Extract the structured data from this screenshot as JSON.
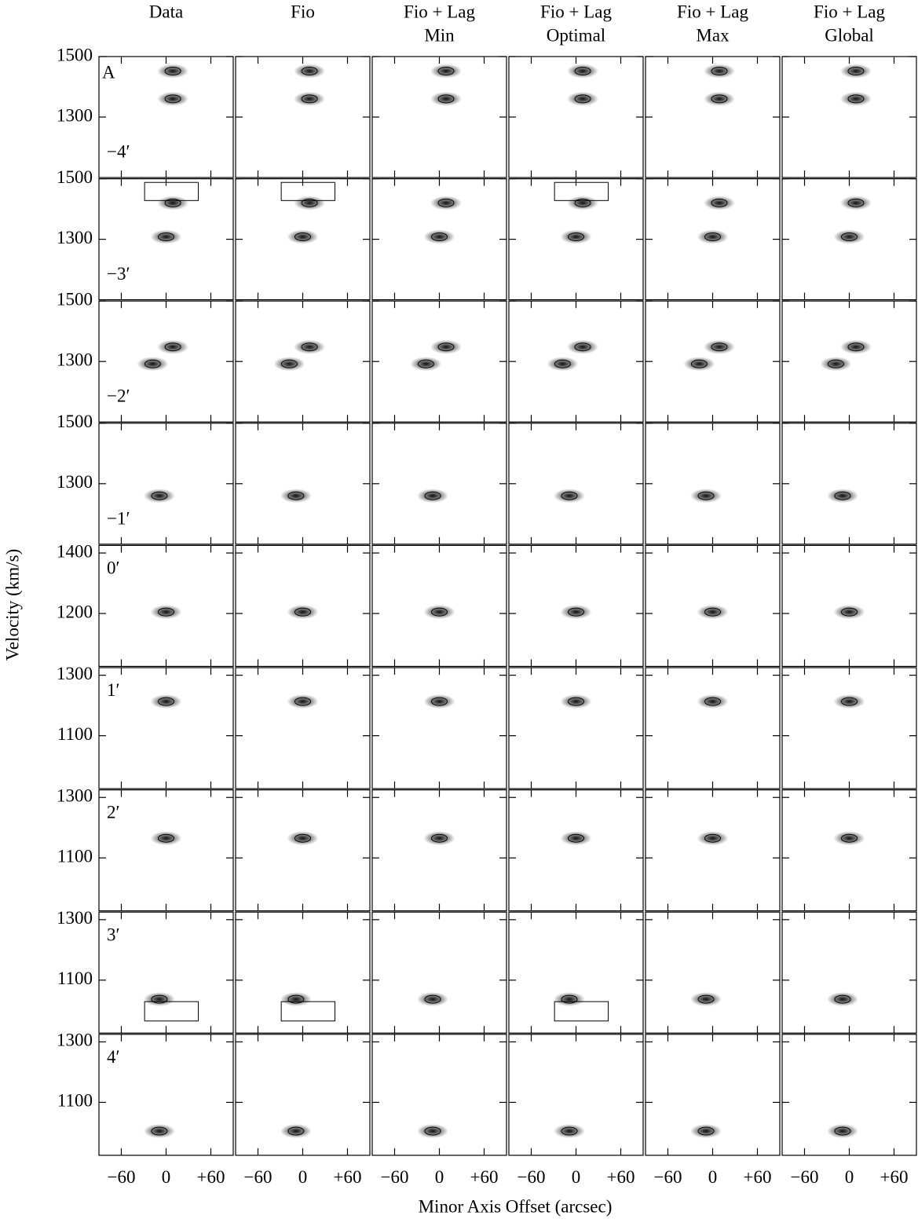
{
  "chart_data": {
    "type": "contour-grid",
    "columns": [
      {
        "title": "Data"
      },
      {
        "title": "Fio"
      },
      {
        "title": "Fio + Lag",
        "subtitle": "Min"
      },
      {
        "title": "Fio + Lag",
        "subtitle": "Optimal"
      },
      {
        "title": "Fio + Lag",
        "subtitle": "Max"
      },
      {
        "title": "Fio + Lag",
        "subtitle": "Global"
      }
    ],
    "rows": [
      {
        "label": "−4′",
        "ylim": [
          1100,
          1500
        ],
        "yticks": [
          1300,
          1500
        ]
      },
      {
        "label": "−3′",
        "ylim": [
          1100,
          1500
        ],
        "yticks": [
          1300,
          1500
        ]
      },
      {
        "label": "−2′",
        "ylim": [
          1100,
          1500
        ],
        "yticks": [
          1300,
          1500
        ]
      },
      {
        "label": "−1′",
        "ylim": [
          1100,
          1500
        ],
        "yticks": [
          1300,
          1500
        ]
      },
      {
        "label": "0′",
        "ylim": [
          1025,
          1425
        ],
        "yticks": [
          1200,
          1400
        ]
      },
      {
        "label": "1′",
        "ylim": [
          925,
          1325
        ],
        "yticks": [
          1100,
          1300
        ]
      },
      {
        "label": "2′",
        "ylim": [
          925,
          1325
        ],
        "yticks": [
          1100,
          1300
        ]
      },
      {
        "label": "3′",
        "ylim": [
          925,
          1325
        ],
        "yticks": [
          1100,
          1300
        ]
      },
      {
        "label": "4′",
        "ylim": [
          925,
          1325
        ],
        "yticks": [
          1100,
          1300
        ]
      }
    ],
    "annotation": "A",
    "xlim": [
      -90,
      90
    ],
    "xticks": [
      {
        "value": -60,
        "label": "−60"
      },
      0,
      {
        "value": 60,
        "label": "+60"
      }
    ],
    "x_label": "Minor Axis Offset (arcsec)",
    "y_label": "Velocity (km/s)"
  }
}
